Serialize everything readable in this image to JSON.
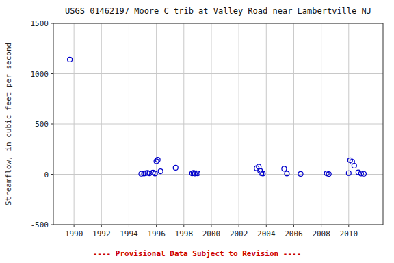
{
  "chart_data": {
    "type": "scatter",
    "title": "USGS 01462197 Moore C trib at Valley Road near Lambertville NJ",
    "ylabel": "Streamflow, in cubic feet per second",
    "annotations": [
      {
        "text": "---- Provisional Data Subject to Revision ----",
        "color": "#cc0000"
      }
    ],
    "x": [
      1989.7,
      1994.9,
      1995.1,
      1995.2,
      1995.35,
      1995.5,
      1995.75,
      1995.9,
      1996.0,
      1996.1,
      1996.3,
      1997.4,
      1998.6,
      1998.7,
      1998.8,
      1998.9,
      1999.0,
      2003.3,
      2003.45,
      2003.55,
      2003.65,
      2003.75,
      2005.3,
      2005.5,
      2006.5,
      2008.4,
      2008.55,
      2010.0,
      2010.1,
      2010.25,
      2010.4,
      2010.7,
      2010.9,
      2011.1
    ],
    "values": [
      1140,
      5,
      8,
      12,
      15,
      10,
      18,
      8,
      130,
      145,
      30,
      65,
      10,
      15,
      8,
      12,
      10,
      60,
      75,
      35,
      12,
      8,
      55,
      8,
      4,
      10,
      3,
      12,
      140,
      125,
      85,
      20,
      8,
      5
    ],
    "color": "#0000cc",
    "marker": "open-circle",
    "xlim": [
      1988.5,
      2012.5
    ],
    "ylim": [
      -500,
      1500
    ],
    "xticks": [
      1990,
      1992,
      1994,
      1996,
      1998,
      2000,
      2002,
      2004,
      2006,
      2008,
      2010
    ],
    "yticks": [
      -500,
      0,
      500,
      1000,
      1500
    ],
    "grid": true
  }
}
